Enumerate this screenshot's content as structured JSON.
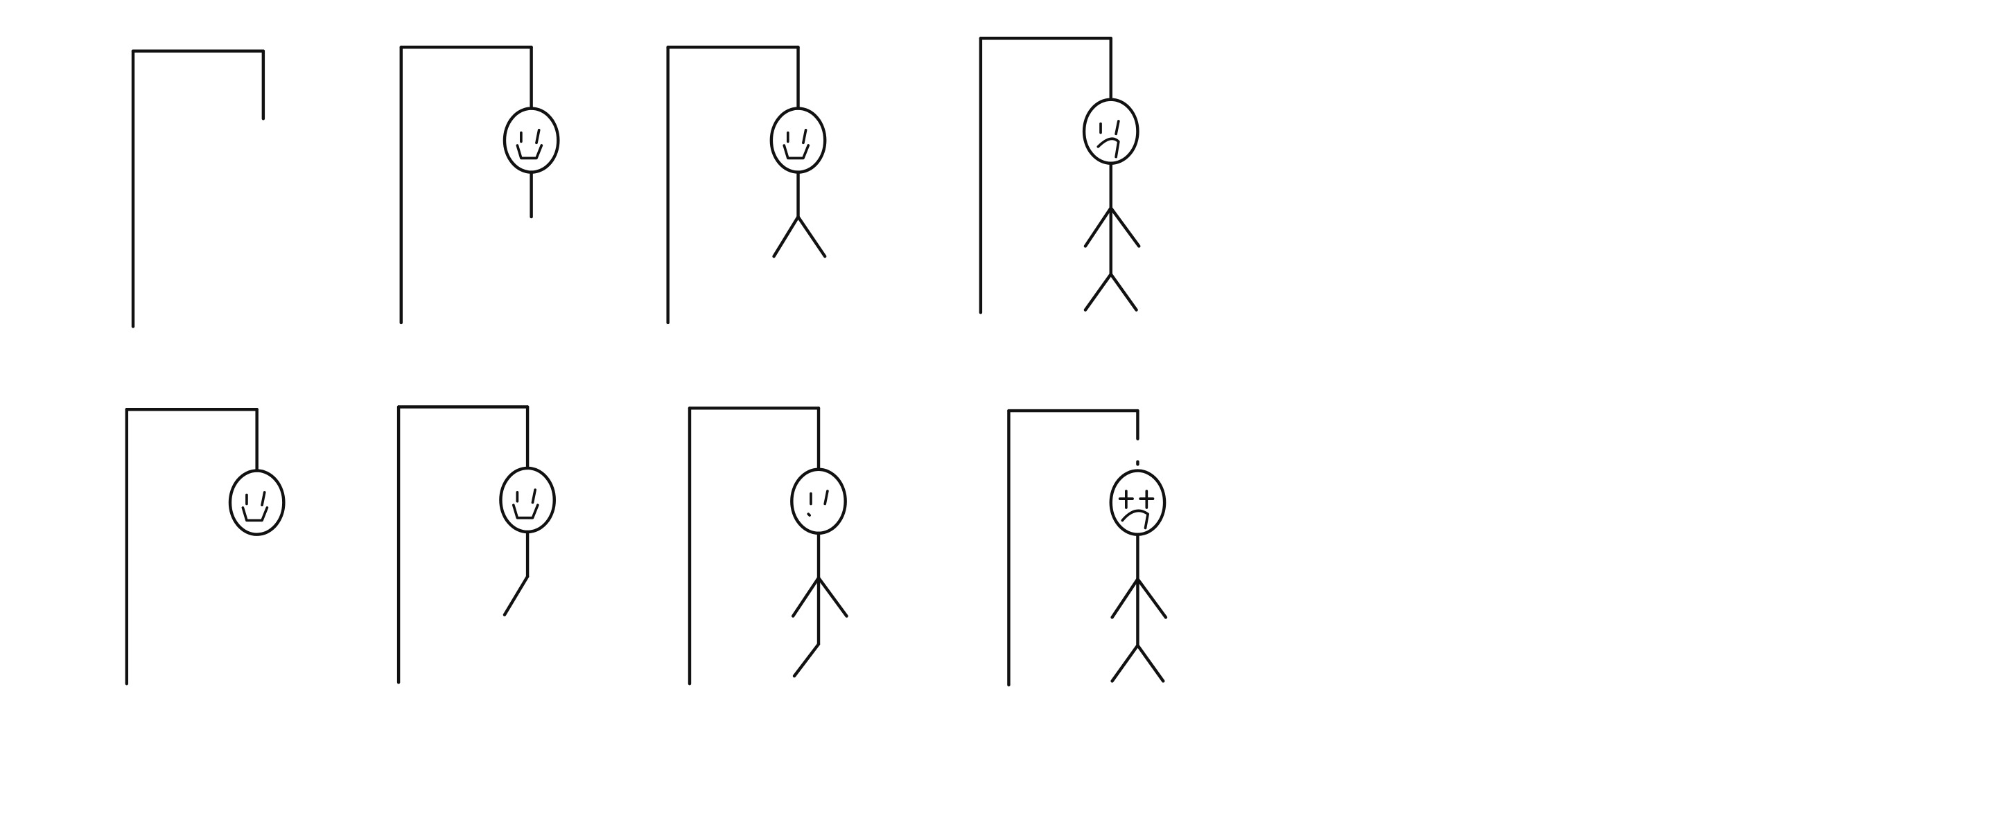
{
  "drawing": {
    "type": "hangman-stages-sketch",
    "stroke_color": "#111111",
    "background_color": "#ffffff",
    "rows": 2,
    "columns": 4,
    "panels": [
      {
        "name": "gallows-empty",
        "parts": [
          "gallows"
        ],
        "face": "none"
      },
      {
        "name": "head-and-body",
        "parts": [
          "gallows",
          "head",
          "body"
        ],
        "face": "smile"
      },
      {
        "name": "head-body-legs",
        "parts": [
          "gallows",
          "head",
          "body",
          "legs"
        ],
        "face": "smile"
      },
      {
        "name": "full-body-sad",
        "parts": [
          "gallows",
          "head",
          "body",
          "arms",
          "legs"
        ],
        "face": "sad"
      },
      {
        "name": "head-only",
        "parts": [
          "gallows",
          "head"
        ],
        "face": "smile"
      },
      {
        "name": "head-body-one-leg",
        "parts": [
          "gallows",
          "head",
          "body",
          "one-leg"
        ],
        "face": "smile"
      },
      {
        "name": "head-body-arms-one-leg",
        "parts": [
          "gallows",
          "head",
          "body",
          "arms",
          "one-leg"
        ],
        "face": "neutral"
      },
      {
        "name": "full-body-dead",
        "parts": [
          "gallows",
          "head",
          "body",
          "arms",
          "legs"
        ],
        "face": "dead"
      }
    ]
  }
}
